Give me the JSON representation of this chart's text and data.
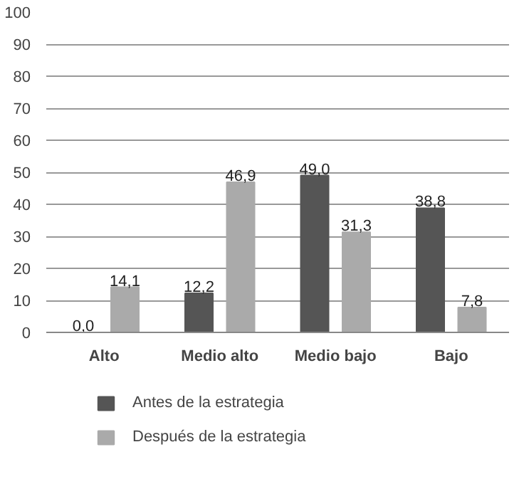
{
  "chart_data": {
    "type": "bar",
    "categories": [
      "Alto",
      "Medio alto",
      "Medio bajo",
      "Bajo"
    ],
    "series": [
      {
        "name": "Antes de la estrategia",
        "color": "#555555",
        "values": [
          0.0,
          12.2,
          49.0,
          38.8
        ],
        "value_labels": [
          "0,0",
          "12,2",
          "49,0",
          "38,8"
        ]
      },
      {
        "name": "Después de la estrategia",
        "color": "#aaaaaa",
        "values": [
          14.1,
          46.9,
          31.3,
          7.8
        ],
        "value_labels": [
          "14,1",
          "46,9",
          "31,3",
          "7,8"
        ]
      }
    ],
    "ylim": [
      0,
      100
    ],
    "yticks": [
      0,
      10,
      20,
      30,
      40,
      50,
      60,
      70,
      80,
      90,
      100
    ],
    "grid": "y",
    "legend": "bottom"
  }
}
